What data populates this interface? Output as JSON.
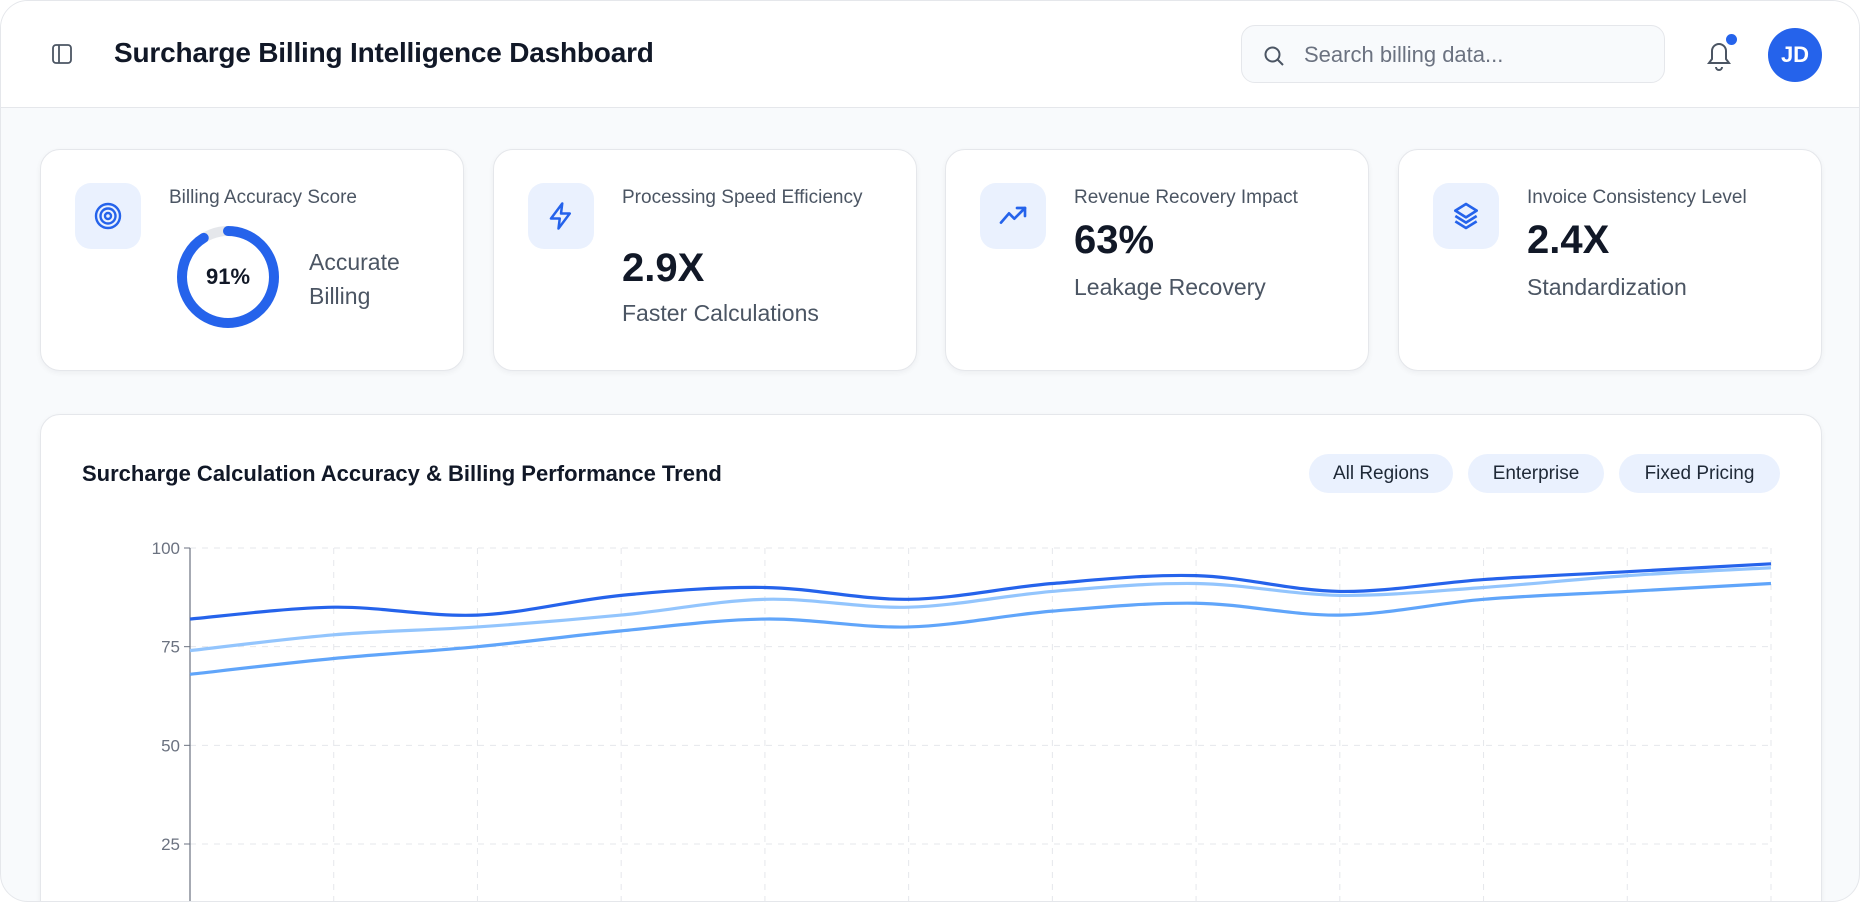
{
  "header": {
    "title": "Surcharge Billing Intelligence Dashboard",
    "search_placeholder": "Search billing data...",
    "avatar_initials": "JD",
    "has_notification": true
  },
  "cards": [
    {
      "label": "Billing Accuracy Score",
      "value": "91%",
      "progress_percent": 91,
      "caption": "Accurate Billing",
      "icon": "target-icon"
    },
    {
      "label": "Processing Speed Efficiency",
      "value": "2.9X",
      "caption": "Faster Calculations",
      "icon": "lightning-icon"
    },
    {
      "label": "Revenue Recovery Impact",
      "value": "63%",
      "caption": "Leakage Recovery",
      "icon": "trending-up-icon"
    },
    {
      "label": "Invoice Consistency Level",
      "value": "2.4X",
      "caption": "Standardization",
      "icon": "layers-icon"
    }
  ],
  "chart_card": {
    "title": "Surcharge Calculation Accuracy & Billing Performance Trend",
    "filters": [
      "All Regions",
      "Enterprise",
      "Fixed Pricing"
    ]
  },
  "colors": {
    "accent": "#2563eb",
    "series": [
      "#2563eb",
      "#93c5fd",
      "#60a5fa"
    ]
  },
  "chart_data": {
    "type": "line",
    "ylim": [
      0,
      100
    ],
    "yticks": [
      "100",
      "75",
      "50",
      "25"
    ],
    "grid": true,
    "series": [
      {
        "values": [
          82,
          85,
          83,
          88,
          90,
          87,
          91,
          93,
          89,
          92,
          94,
          96
        ]
      },
      {
        "values": [
          74,
          78,
          80,
          83,
          87,
          85,
          89,
          91,
          88,
          90,
          93,
          95
        ]
      },
      {
        "values": [
          68,
          72,
          75,
          79,
          82,
          80,
          84,
          86,
          83,
          87,
          89,
          91
        ]
      }
    ]
  }
}
